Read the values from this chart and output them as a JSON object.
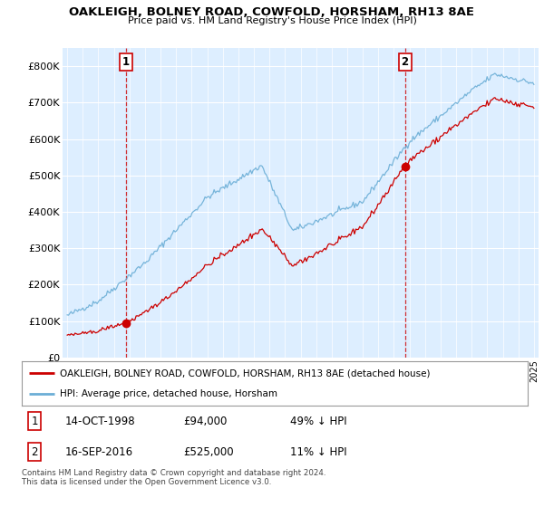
{
  "title": "OAKLEIGH, BOLNEY ROAD, COWFOLD, HORSHAM, RH13 8AE",
  "subtitle": "Price paid vs. HM Land Registry's House Price Index (HPI)",
  "legend_line1": "OAKLEIGH, BOLNEY ROAD, COWFOLD, HORSHAM, RH13 8AE (detached house)",
  "legend_line2": "HPI: Average price, detached house, Horsham",
  "sale1_date": "14-OCT-1998",
  "sale1_price": "£94,000",
  "sale1_hpi": "49% ↓ HPI",
  "sale1_year": 1998.79,
  "sale1_value": 94000,
  "sale2_date": "16-SEP-2016",
  "sale2_price": "£525,000",
  "sale2_hpi": "11% ↓ HPI",
  "sale2_year": 2016.71,
  "sale2_value": 525000,
  "red_color": "#cc0000",
  "blue_color": "#6baed6",
  "background_color": "#ffffff",
  "plot_bg_color": "#ddeeff",
  "grid_color": "#ffffff",
  "ylim": [
    0,
    850000
  ],
  "yticks": [
    0,
    100000,
    200000,
    300000,
    400000,
    500000,
    600000,
    700000,
    800000
  ],
  "ytick_labels": [
    "£0",
    "£100K",
    "£200K",
    "£300K",
    "£400K",
    "£500K",
    "£600K",
    "£700K",
    "£800K"
  ],
  "footer": "Contains HM Land Registry data © Crown copyright and database right 2024.\nThis data is licensed under the Open Government Licence v3.0."
}
